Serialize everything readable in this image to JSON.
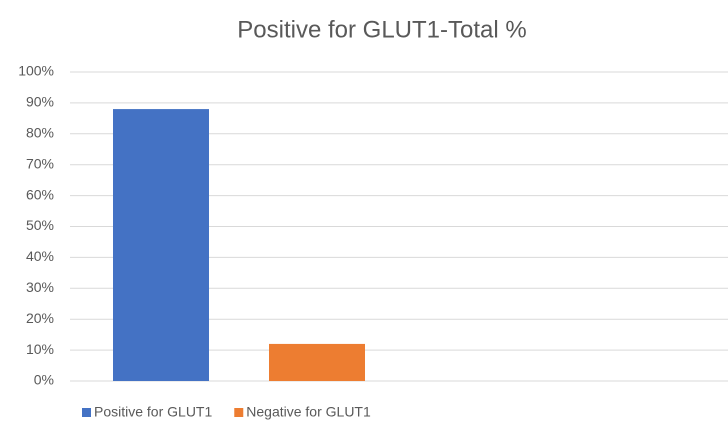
{
  "chart_data": {
    "type": "bar",
    "title": "Positive for GLUT1-Total %",
    "series": [
      {
        "name": "Positive for GLUT1",
        "color": "#4472c4",
        "values": [
          88
        ]
      },
      {
        "name": "Negative for GLUT1",
        "color": "#ed7d31",
        "values": [
          12
        ]
      }
    ],
    "ylim": [
      0,
      100
    ],
    "yticks": [
      {
        "value": 0,
        "label": "0%"
      },
      {
        "value": 10,
        "label": "10%"
      },
      {
        "value": 20,
        "label": "20%"
      },
      {
        "value": 30,
        "label": "30%"
      },
      {
        "value": 40,
        "label": "40%"
      },
      {
        "value": 50,
        "label": "50%"
      },
      {
        "value": 60,
        "label": "60%"
      },
      {
        "value": 70,
        "label": "70%"
      },
      {
        "value": 80,
        "label": "80%"
      },
      {
        "value": 90,
        "label": "90%"
      },
      {
        "value": 100,
        "label": "100%"
      }
    ],
    "grid": true,
    "legend": "bottom"
  }
}
